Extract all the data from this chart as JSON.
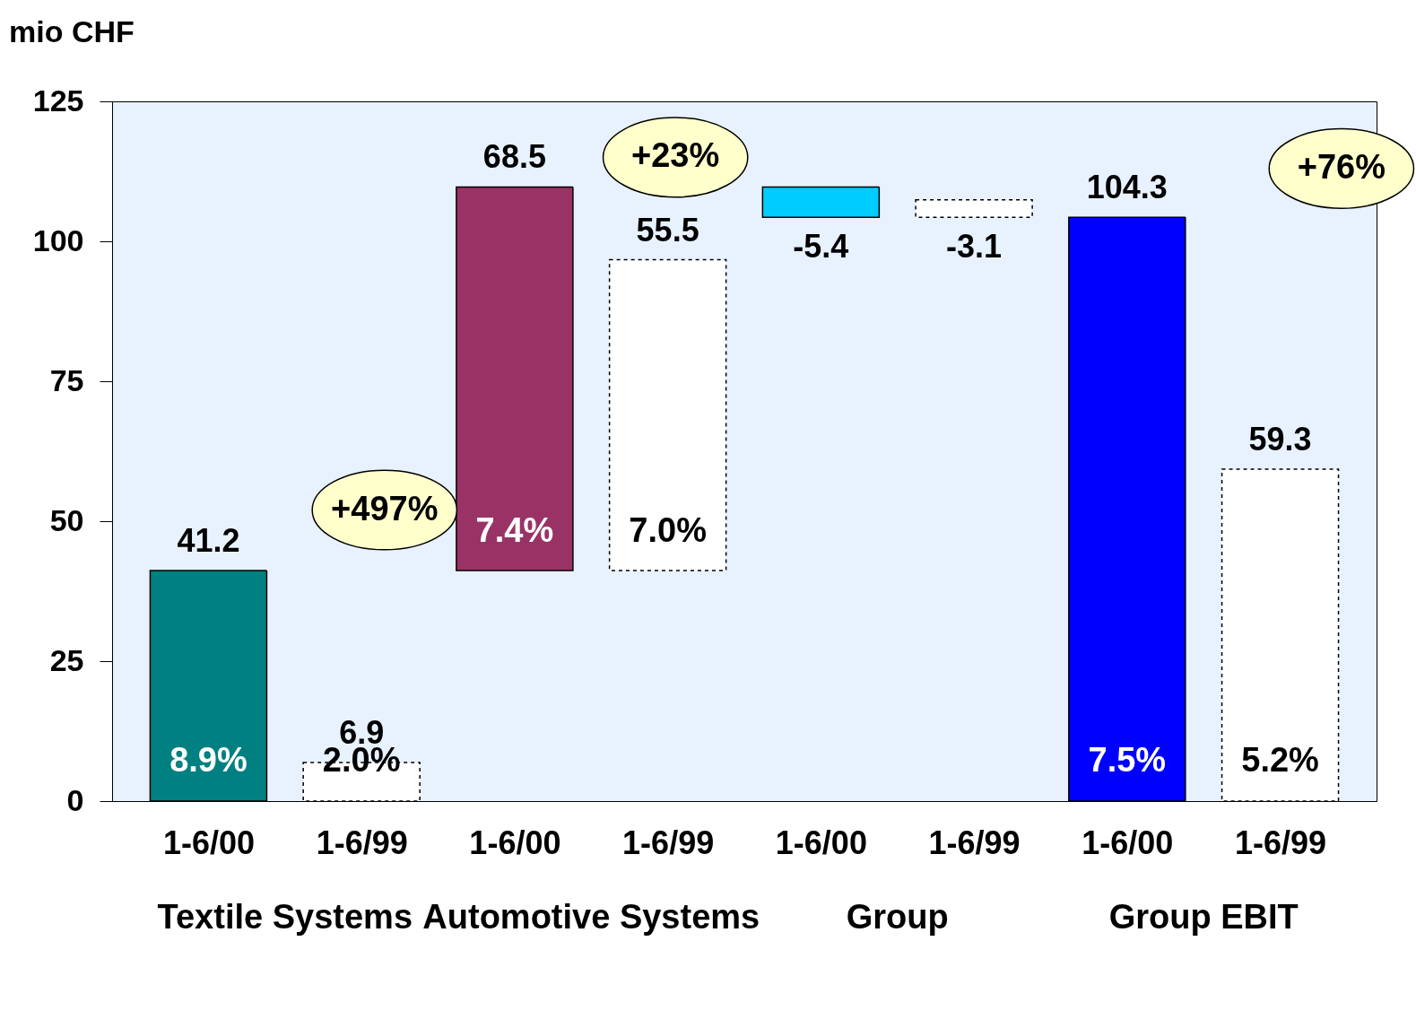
{
  "chart_data": {
    "type": "bar",
    "ylabel": "mio CHF",
    "categories": [
      "1-6/00",
      "1-6/99",
      "1-6/00",
      "1-6/99",
      "1-6/00",
      "1-6/99",
      "1-6/00",
      "1-6/99"
    ],
    "values": [
      41.2,
      6.9,
      68.5,
      55.5,
      -5.4,
      -3.1,
      104.3,
      59.3
    ],
    "base": [
      0,
      0,
      41.2,
      41.2,
      109.7,
      107.4,
      0,
      0
    ],
    "colors": [
      "#008080",
      "#ffffff",
      "#993366",
      "#ffffff",
      "#00ccff",
      "#ffffff",
      "#0000ff",
      "#ffffff"
    ],
    "ylim": [
      0,
      125
    ],
    "yticks": [
      0,
      25,
      50,
      75,
      100,
      125
    ],
    "data_labels": true,
    "annotations": [
      "8.9%",
      "2.0%",
      "7.4%",
      "7.0%",
      "7.5%",
      "5.2%",
      "+497%",
      "+23%",
      "+76%",
      "Textile Systems",
      "Automotive Systems",
      "Group",
      "Group EBIT"
    ]
  }
}
